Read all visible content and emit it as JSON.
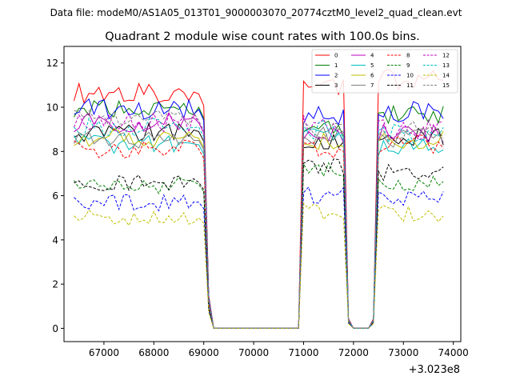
{
  "suptitle": "Data file: modeM0/AS1A05_013T01_9000003070_20774cztM0_level2_quad_clean.evt",
  "chart_data": {
    "type": "line",
    "title": "Quadrant 2 module wise count rates with 100.0s bins.",
    "xlabel": "",
    "ylabel": "",
    "x_offset_label": "+3.023e8",
    "xlim": [
      66200,
      74150
    ],
    "ylim": [
      -0.6,
      12.75
    ],
    "xticks": [
      67000,
      68000,
      69000,
      70000,
      71000,
      72000,
      73000,
      74000
    ],
    "xtick_labels": [
      "67000",
      "68000",
      "69000",
      "70000",
      "71000",
      "72000",
      "73000",
      "74000"
    ],
    "yticks": [
      0,
      2,
      4,
      6,
      8,
      10,
      12
    ],
    "ytick_labels": [
      "0",
      "2",
      "4",
      "6",
      "8",
      "10",
      "12"
    ],
    "grid": false,
    "legend_position": "top-right",
    "legend_columns": 4,
    "segments": [
      {
        "start": 66400,
        "end": 69000
      },
      {
        "start": 71000,
        "end": 71800
      },
      {
        "start": 72500,
        "end": 73800
      }
    ],
    "gaps": [
      [
        69200,
        70900
      ],
      [
        71900,
        72400
      ]
    ],
    "series": [
      {
        "name": "0",
        "color": "#ff0000",
        "dash": "solid",
        "levels": [
          10.6,
          10.9,
          11.3
        ]
      },
      {
        "name": "1",
        "color": "#008000",
        "dash": "solid",
        "levels": [
          10.0,
          9.0,
          9.7
        ]
      },
      {
        "name": "2",
        "color": "#0000ff",
        "dash": "solid",
        "levels": [
          9.9,
          9.6,
          9.8
        ]
      },
      {
        "name": "3",
        "color": "#000000",
        "dash": "solid",
        "levels": [
          8.9,
          8.5,
          8.7
        ]
      },
      {
        "name": "4",
        "color": "#bf00bf",
        "dash": "solid",
        "levels": [
          9.3,
          8.8,
          8.8
        ]
      },
      {
        "name": "5",
        "color": "#00bfbf",
        "dash": "solid",
        "levels": [
          8.3,
          8.6,
          8.2
        ]
      },
      {
        "name": "6",
        "color": "#bfbf00",
        "dash": "solid",
        "levels": [
          8.6,
          8.5,
          8.5
        ]
      },
      {
        "name": "7",
        "color": "#808080",
        "dash": "solid",
        "levels": [
          8.5,
          8.7,
          8.6
        ]
      },
      {
        "name": "8",
        "color": "#ff0000",
        "dash": "dashed",
        "levels": [
          8.1,
          8.0,
          8.3
        ]
      },
      {
        "name": "9",
        "color": "#008000",
        "dash": "dashed",
        "levels": [
          6.5,
          7.1,
          6.6
        ]
      },
      {
        "name": "10",
        "color": "#0000ff",
        "dash": "dashed",
        "levels": [
          5.7,
          6.0,
          5.9
        ]
      },
      {
        "name": "11",
        "color": "#000000",
        "dash": "dashed",
        "levels": [
          6.6,
          7.4,
          7.0
        ]
      },
      {
        "name": "12",
        "color": "#bf00bf",
        "dash": "dashed",
        "levels": [
          9.3,
          9.2,
          9.0
        ]
      },
      {
        "name": "13",
        "color": "#00bfbf",
        "dash": "dashed",
        "levels": [
          9.1,
          9.0,
          8.8
        ]
      },
      {
        "name": "14",
        "color": "#bfbf00",
        "dash": "dashed",
        "levels": [
          5.0,
          5.3,
          5.2
        ]
      },
      {
        "name": "15",
        "color": "#808080",
        "dash": "dashed",
        "levels": [
          9.4,
          9.0,
          8.9
        ]
      }
    ]
  }
}
